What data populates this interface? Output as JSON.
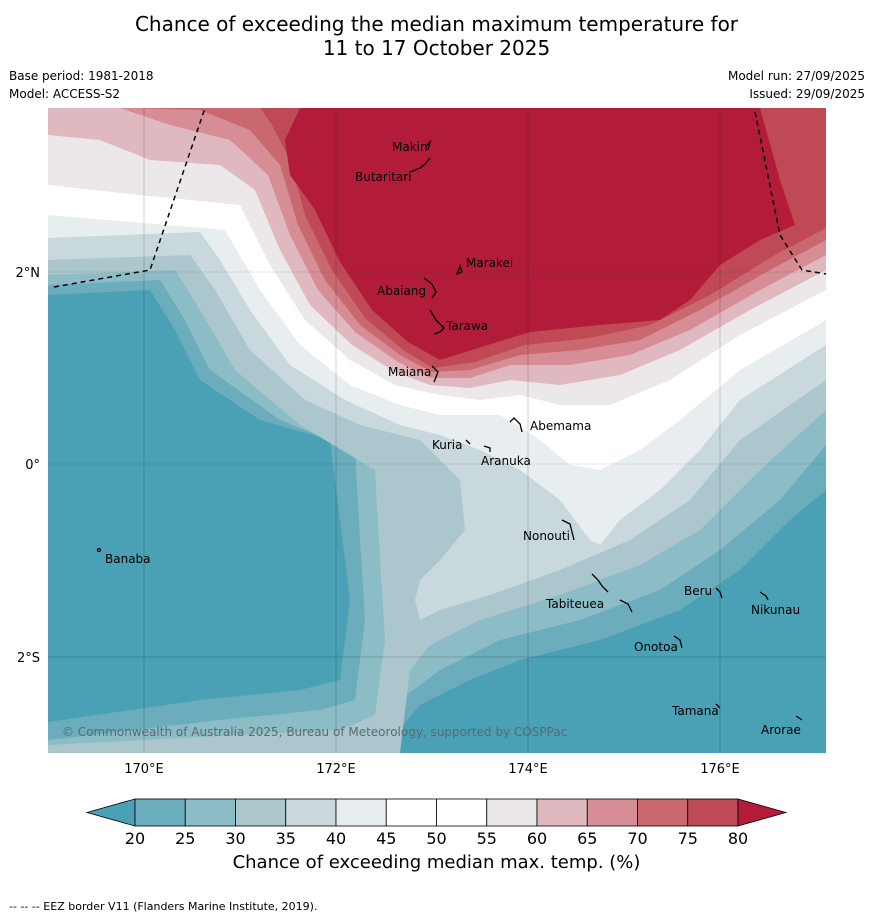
{
  "title": {
    "line1": "Chance of exceeding the median maximum temperature for",
    "line2": "11 to 17 October 2025"
  },
  "meta": {
    "base_period": "Base period: 1981-2018",
    "model": "Model: ACCESS-S2",
    "model_run": "Model run: 27/09/2025",
    "issued": "Issued: 29/09/2025"
  },
  "map": {
    "lon_labels": [
      "170°E",
      "172°E",
      "174°E",
      "176°E"
    ],
    "lat_labels": [
      "2°N",
      "0°",
      "2°S"
    ],
    "places": [
      "Makin",
      "Butaritari",
      "Marakei",
      "Abaiang",
      "Tarawa",
      "Maiana",
      "Abemama",
      "Kuria",
      "Aranuka",
      "Nonouti",
      "Banaba",
      "Tabiteuea",
      "Beru",
      "Nikunau",
      "Onotoa",
      "Tamana",
      "Arorae"
    ],
    "copyright": "© Commonwealth of Australia 2025, Bureau of Meteorology, supported by COSPPac"
  },
  "colorbar": {
    "ticks": [
      "20",
      "25",
      "30",
      "35",
      "40",
      "45",
      "50",
      "55",
      "60",
      "65",
      "70",
      "75",
      "80"
    ],
    "colors": [
      "#4aa0b5",
      "#6badbc",
      "#8cbcc6",
      "#abc7cd",
      "#c8d8dc",
      "#e8eef0",
      "#ffffff",
      "#ffffff",
      "#ece8e9",
      "#e0b8bf",
      "#d68d96",
      "#c9686f",
      "#bf4a55",
      "#b21c39"
    ],
    "label": "Chance of exceeding median max. temp. (%)"
  },
  "footnote": "--  --  -- EEZ border V11 (Flanders Marine Institute, 2019)."
}
